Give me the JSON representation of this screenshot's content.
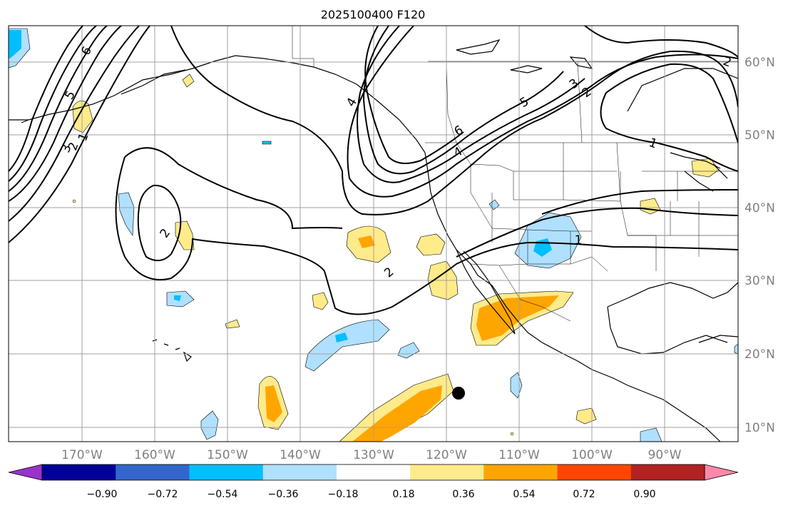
{
  "chart_data": {
    "type": "map-contour",
    "title": "2025100400 F120",
    "x_ticks": [
      "170°W",
      "160°W",
      "150°W",
      "140°W",
      "130°W",
      "120°W",
      "110°W",
      "100°W",
      "90°W"
    ],
    "y_ticks": [
      "60°N",
      "50°N",
      "40°N",
      "30°N",
      "20°N",
      "10°N"
    ],
    "colorbar": {
      "ticks": [
        "−0.90",
        "−0.72",
        "−0.54",
        "−0.36",
        "−0.18",
        "0.18",
        "0.36",
        "0.54",
        "0.72",
        "0.90"
      ],
      "colors": [
        "#9933cc",
        "#000099",
        "#3366cc",
        "#00bfff",
        "#b0e0ff",
        "#ffffff",
        "#ffeb8a",
        "#ffa500",
        "#ff4500",
        "#b22222",
        "#ff88aa"
      ],
      "extend": "both"
    },
    "contour_labels": [
      "6",
      "5",
      "4",
      "3",
      "2",
      "1",
      "1",
      "2",
      "2",
      "2",
      "1",
      "6",
      "5",
      "4",
      "3",
      "2",
      "1",
      "2"
    ],
    "marker": "storm-center"
  },
  "colors": {
    "land_outline": "#000000",
    "grid": "#a0a0a0",
    "light_blue": "#b0e0ff",
    "cyan": "#00bfff",
    "yellow": "#ffeb8a",
    "orange": "#ffa500"
  }
}
